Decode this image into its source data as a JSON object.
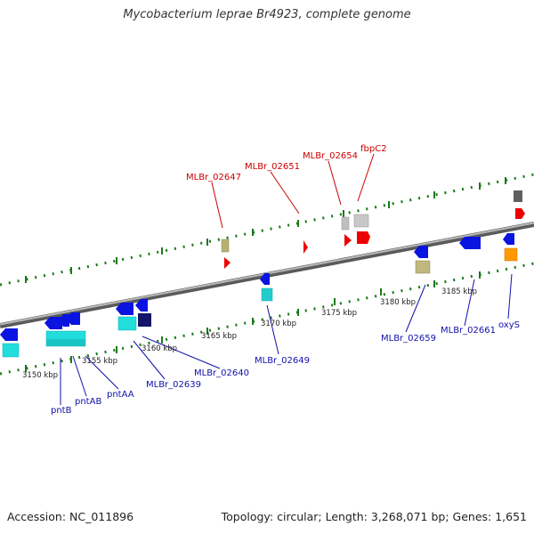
{
  "title": "Mycobacterium leprae Br4923, complete genome",
  "footer": {
    "accession": "Accession: NC_011896",
    "summary": "Topology: circular; Length: 3,268,071 bp; Genes: 1,651"
  },
  "kbp_labels": [
    "3150 kbp",
    "3155 kbp",
    "3160 kbp",
    "3165 kbp",
    "3170 kbp",
    "3175 kbp",
    "3180 kbp",
    "3185 kbp"
  ],
  "gene_labels_top": [
    "MLBr_02647",
    "MLBr_02651",
    "MLBr_02654",
    "fbpC2"
  ],
  "gene_labels_bottom": [
    "pntB",
    "pntAB",
    "pntAA",
    "MLBr_02639",
    "MLBr_02640",
    "MLBr_02649",
    "MLBr_02659",
    "MLBr_02661",
    "oxyS"
  ],
  "colors": {
    "forward_gene": "#ee0000",
    "reverse_gene": "#0a14e0",
    "backbone": "#8a8a8a",
    "tick": "#1a7a1a",
    "top_label": "#cc0000",
    "bottom_label": "#1010aa"
  }
}
